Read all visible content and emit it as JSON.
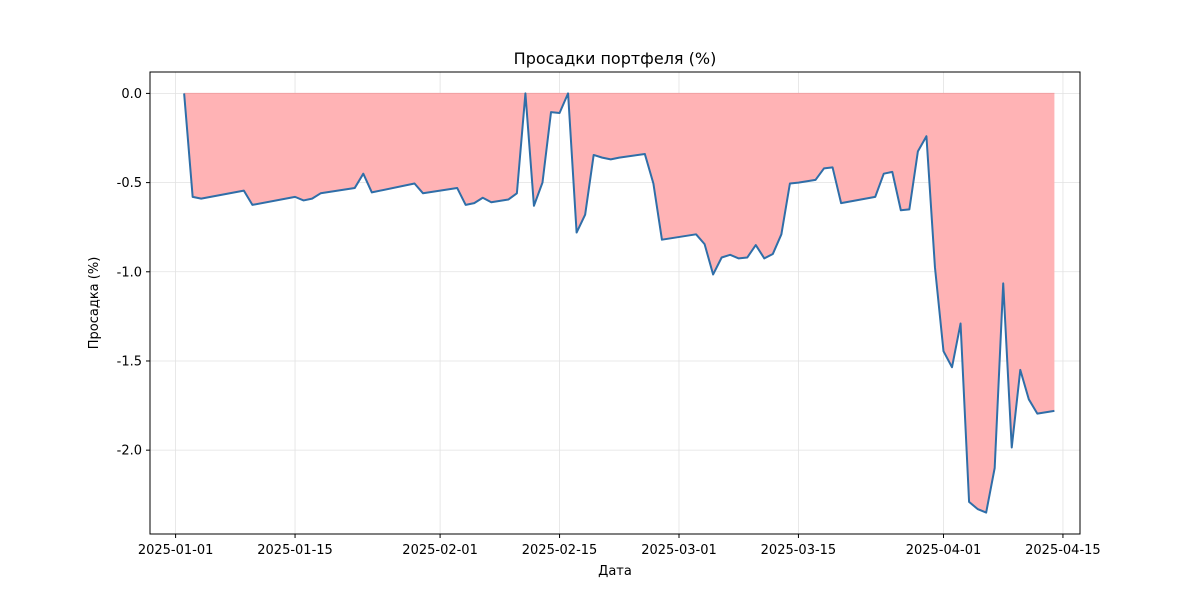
{
  "chart_data": {
    "type": "area",
    "title": "Просадки портфеля (%)",
    "xlabel": "Дата",
    "ylabel": "Просадка (%)",
    "grid": true,
    "colors": {
      "line": "#2f6ea8",
      "fill": "#ffb3b5",
      "grid": "#e2e2e2"
    },
    "xlim": [
      "2024-12-29",
      "2025-04-17"
    ],
    "ylim": [
      -2.47,
      0.12
    ],
    "x_ticks": [
      "2025-01-01",
      "2025-01-15",
      "2025-02-01",
      "2025-02-15",
      "2025-03-01",
      "2025-03-15",
      "2025-04-01",
      "2025-04-15"
    ],
    "y_ticks": [
      "0.0",
      "-0.5",
      "-1.0",
      "-1.5",
      "-2.0"
    ],
    "y_tick_values": [
      0.0,
      -0.5,
      -1.0,
      -1.5,
      -2.0
    ],
    "series": [
      {
        "x": [
          "2025-01-02",
          "2025-01-03",
          "2025-01-04",
          "2025-01-09",
          "2025-01-10",
          "2025-01-15",
          "2025-01-16",
          "2025-01-17",
          "2025-01-18",
          "2025-01-22",
          "2025-01-23",
          "2025-01-24",
          "2025-01-29",
          "2025-01-30",
          "2025-02-03",
          "2025-02-04",
          "2025-02-05",
          "2025-02-06",
          "2025-02-07",
          "2025-02-09",
          "2025-02-10",
          "2025-02-11",
          "2025-02-12",
          "2025-02-13",
          "2025-02-14",
          "2025-02-15",
          "2025-02-16",
          "2025-02-17",
          "2025-02-18",
          "2025-02-19",
          "2025-02-20",
          "2025-02-21",
          "2025-02-22",
          "2025-02-25",
          "2025-02-26",
          "2025-02-27",
          "2025-03-03",
          "2025-03-04",
          "2025-03-05",
          "2025-03-06",
          "2025-03-07",
          "2025-03-08",
          "2025-03-09",
          "2025-03-10",
          "2025-03-11",
          "2025-03-12",
          "2025-03-13",
          "2025-03-14",
          "2025-03-15",
          "2025-03-17",
          "2025-03-18",
          "2025-03-19",
          "2025-03-20",
          "2025-03-24",
          "2025-03-25",
          "2025-03-26",
          "2025-03-27",
          "2025-03-28",
          "2025-03-29",
          "2025-03-30",
          "2025-03-31",
          "2025-04-01",
          "2025-04-02",
          "2025-04-03",
          "2025-04-04",
          "2025-04-05",
          "2025-04-06",
          "2025-04-07",
          "2025-04-08",
          "2025-04-09",
          "2025-04-10",
          "2025-04-11",
          "2025-04-12",
          "2025-04-14"
        ],
        "values": [
          0.0,
          -0.58,
          -0.59,
          -0.545,
          -0.625,
          -0.58,
          -0.6,
          -0.59,
          -0.56,
          -0.53,
          -0.45,
          -0.555,
          -0.505,
          -0.56,
          -0.53,
          -0.625,
          -0.615,
          -0.585,
          -0.61,
          -0.595,
          -0.56,
          0.0,
          -0.63,
          -0.5,
          -0.105,
          -0.11,
          0.0,
          -0.78,
          -0.68,
          -0.345,
          -0.36,
          -0.37,
          -0.36,
          -0.34,
          -0.505,
          -0.82,
          -0.79,
          -0.845,
          -1.015,
          -0.92,
          -0.905,
          -0.925,
          -0.92,
          -0.85,
          -0.925,
          -0.9,
          -0.79,
          -0.505,
          -0.5,
          -0.485,
          -0.42,
          -0.415,
          -0.615,
          -0.58,
          -0.45,
          -0.44,
          -0.655,
          -0.65,
          -0.325,
          -0.24,
          -0.975,
          -1.445,
          -1.535,
          -1.29,
          -2.29,
          -2.33,
          -2.35,
          -2.1,
          -1.065,
          -1.985,
          -1.55,
          -1.715,
          -1.795,
          -1.78
        ]
      }
    ]
  }
}
